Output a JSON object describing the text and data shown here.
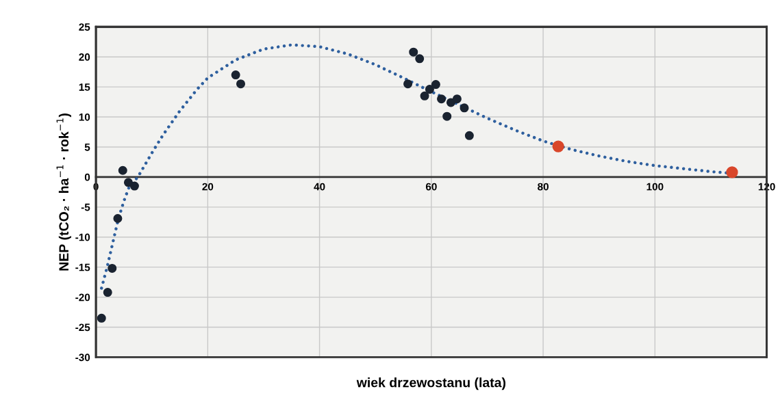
{
  "chart_data": {
    "type": "scatter",
    "xlabel": "wiek drzewostanu (lata)",
    "ylabel": "NEP (tCO₂ · ha$^{−1}$ · rok$^{−1}$)",
    "xlim": [
      0,
      120
    ],
    "xticks": [
      0,
      20,
      40,
      60,
      80,
      100,
      120
    ],
    "ylim": [
      -30,
      25
    ],
    "yticks": [
      -30,
      -25,
      -20,
      -15,
      -10,
      -5,
      0,
      5,
      10,
      15,
      20,
      25
    ],
    "grid": true,
    "legend": false,
    "marker": "circle",
    "series": [
      {
        "type": "line",
        "color": "#2e5f9e",
        "line_style": "dotted",
        "marker": "none",
        "x": [
          1,
          2,
          3,
          4,
          5,
          6,
          7.5,
          10,
          12,
          15,
          18,
          20,
          25,
          30,
          35,
          40,
          45,
          50,
          55,
          60,
          65,
          70,
          75,
          80,
          85,
          90,
          95,
          100,
          105,
          110,
          114
        ],
        "values": [
          -18.5,
          -15,
          -11,
          -7,
          -4,
          -1.5,
          0,
          4,
          7,
          11,
          14.5,
          16.5,
          19.5,
          21.3,
          22,
          21.7,
          20.5,
          18.7,
          16.5,
          14.2,
          12,
          9.8,
          7.8,
          6,
          4.6,
          3.5,
          2.6,
          1.9,
          1.4,
          0.9,
          0.6
        ]
      },
      {
        "color": "#1a2330",
        "x": [
          1.0,
          2.1,
          2.9,
          3.9,
          4.8,
          5.8,
          6.9,
          25,
          25.9,
          56.8,
          57.9,
          55.8,
          58.8,
          59.7,
          60.8,
          61.8,
          62.8,
          63.5,
          64.6,
          65.9,
          66.8
        ],
        "values": [
          -23.5,
          -19.2,
          -15.2,
          -6.9,
          1.1,
          -0.9,
          -1.5,
          17,
          15.5,
          20.8,
          19.7,
          15.5,
          13.5,
          14.6,
          15.4,
          13,
          10.1,
          12.4,
          13,
          11.5,
          6.9
        ]
      },
      {
        "color": "#d9472b",
        "x": [
          82.7,
          113.8
        ],
        "values": [
          5.1,
          0.8
        ]
      }
    ]
  }
}
